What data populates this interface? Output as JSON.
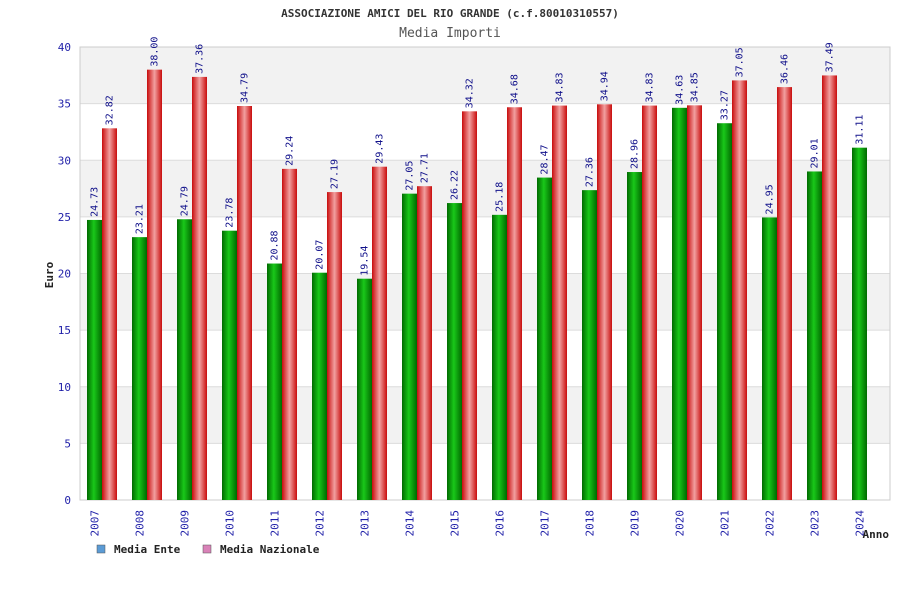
{
  "chart_data": {
    "type": "bar",
    "title": "ASSOCIAZIONE AMICI DEL RIO GRANDE (c.f.80010310557)",
    "subtitle": "Media Importi",
    "xlabel": "Anno",
    "ylabel": "Euro",
    "ylim": [
      0,
      40
    ],
    "yticks": [
      "0",
      "5",
      "10",
      "15",
      "20",
      "25",
      "30",
      "35",
      "40"
    ],
    "grid": "horizontal bands",
    "legend_position": "bottom-left",
    "categories": [
      "2007",
      "2008",
      "2009",
      "2010",
      "2011",
      "2012",
      "2013",
      "2014",
      "2015",
      "2016",
      "2017",
      "2018",
      "2019",
      "2020",
      "2021",
      "2022",
      "2023",
      "2024"
    ],
    "series": [
      {
        "name": "Media Ente",
        "color": "#00a000",
        "legend_color": "#5b9bd5",
        "values": [
          24.73,
          23.21,
          24.79,
          23.78,
          20.88,
          20.07,
          19.54,
          27.05,
          26.22,
          25.18,
          28.47,
          27.36,
          28.96,
          34.63,
          33.27,
          24.95,
          29.01,
          31.11
        ],
        "labels": [
          "24.73",
          "23.21",
          "24.79",
          "23.78",
          "20.88",
          "20.07",
          "19.54",
          "27.05",
          "26.22",
          "25.18",
          "28.47",
          "27.36",
          "28.96",
          "34.63",
          "33.27",
          "24.95",
          "29.01",
          "31.11"
        ]
      },
      {
        "name": "Media Nazionale",
        "color": "#e01818",
        "legend_color": "#d982b8",
        "values": [
          32.82,
          38.0,
          37.36,
          34.79,
          29.24,
          27.19,
          29.43,
          27.71,
          34.32,
          34.68,
          34.83,
          34.94,
          34.83,
          34.85,
          37.05,
          36.46,
          37.49,
          null
        ],
        "labels": [
          "32.82",
          "38.00",
          "37.36",
          "34.79",
          "29.24",
          "27.19",
          "29.43",
          "27.71",
          "34.32",
          "34.68",
          "34.83",
          "34.94",
          "34.83",
          "34.85",
          "37.05",
          "36.46",
          "37.49",
          ""
        ]
      }
    ]
  }
}
